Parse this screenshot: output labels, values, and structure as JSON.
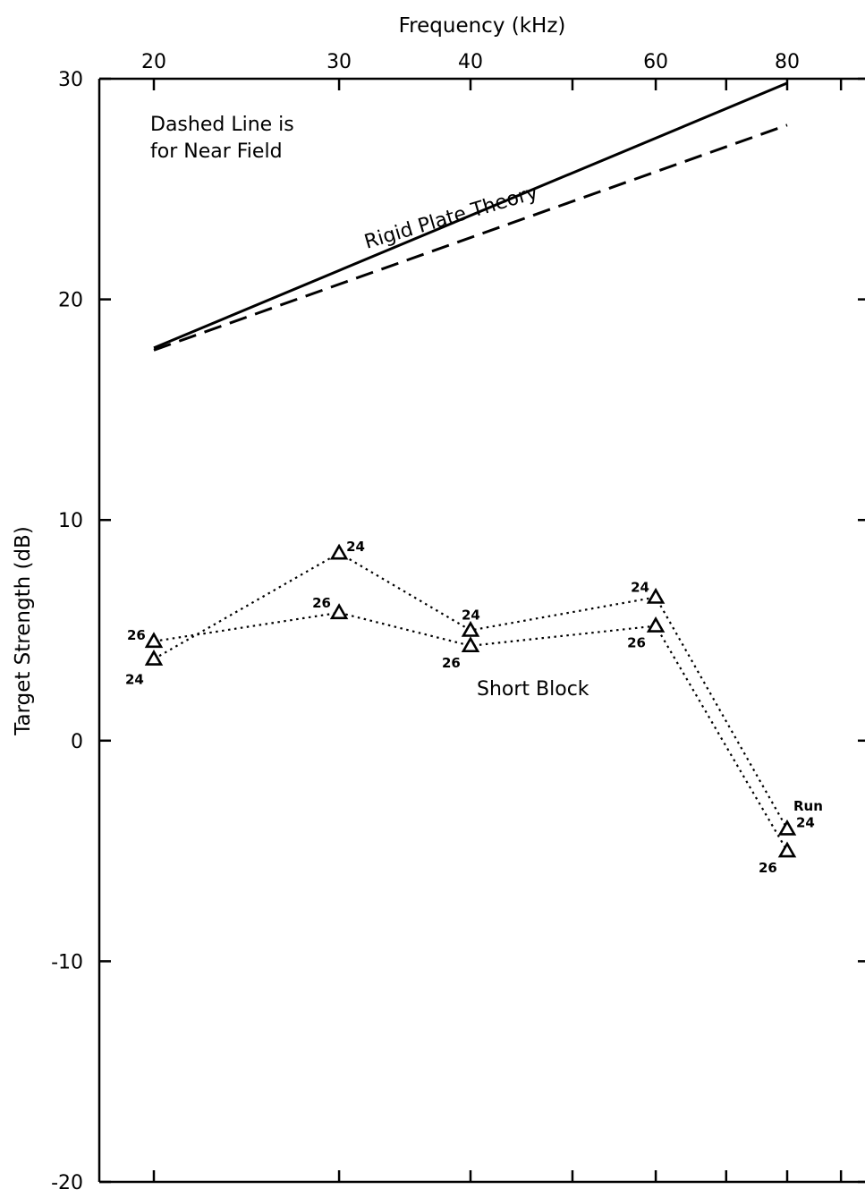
{
  "chart_data": {
    "type": "line",
    "xlabel": "Frequency (kHz)",
    "ylabel": "Target Strength (dB)",
    "x_scale": "log",
    "x_axis_position": "top",
    "xlim": [
      18,
      88
    ],
    "ylim": [
      -20,
      30
    ],
    "x_ticks": [
      20,
      30,
      40,
      60,
      80
    ],
    "y_ticks": [
      -20,
      -10,
      0,
      10,
      20,
      30
    ],
    "grid": false,
    "annotations": [
      {
        "text": "Dashed Line is",
        "name": "note-dashed-line-1"
      },
      {
        "text": "for Near Field",
        "name": "note-dashed-line-2"
      },
      {
        "text": "Rigid Plate Theory",
        "name": "label-rigid-plate-theory"
      },
      {
        "text": "Short Block",
        "name": "label-short-block"
      },
      {
        "text": "Run",
        "name": "label-run"
      }
    ],
    "series": [
      {
        "name": "Rigid Plate Theory",
        "style": "solid",
        "marker": "none",
        "x": [
          20,
          80
        ],
        "y": [
          17.8,
          29.8
        ]
      },
      {
        "style": "dashed",
        "marker": "none",
        "x": [
          20,
          80
        ],
        "y": [
          17.7,
          27.9
        ]
      },
      {
        "name": "24",
        "style": "dotted",
        "marker": "triangle",
        "x": [
          20,
          30,
          40,
          60,
          80
        ],
        "y": [
          3.7,
          8.5,
          5.0,
          6.5,
          -4.0
        ]
      },
      {
        "name": "26",
        "style": "dotted",
        "marker": "triangle",
        "x": [
          20,
          30,
          40,
          60,
          80
        ],
        "y": [
          4.5,
          5.8,
          4.3,
          5.2,
          -5.0
        ]
      }
    ]
  }
}
